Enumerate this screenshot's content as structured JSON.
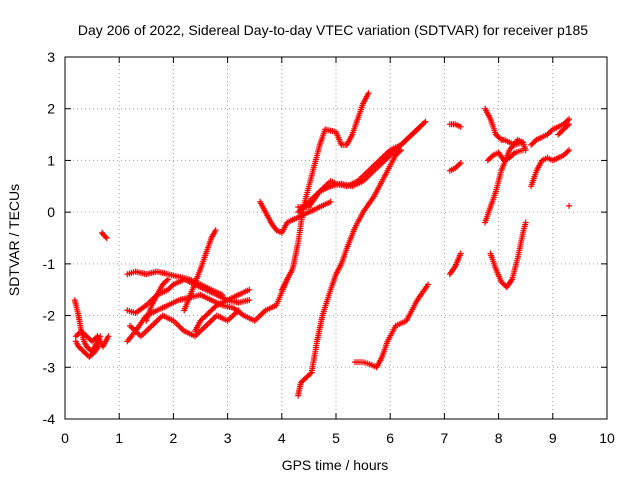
{
  "chart_data": {
    "type": "scatter",
    "title": "Day 206 of 2022, Sidereal Day-to-day VTEC variation (SDTVAR) for receiver p185",
    "xlabel": "GPS time / hours",
    "ylabel": "SDTVAR / TECUs",
    "xlim": [
      0,
      10
    ],
    "ylim": [
      -4,
      3
    ],
    "x_ticks": [
      "0",
      "1",
      "2",
      "3",
      "4",
      "5",
      "6",
      "7",
      "8",
      "9",
      "10"
    ],
    "y_ticks": [
      "3",
      "2",
      "1",
      "0",
      "-1",
      "-2",
      "-3",
      "-4"
    ],
    "grid": true,
    "marker": "+",
    "color": "#ff0000",
    "series": [
      {
        "x": [
          0.18,
          0.25,
          0.3,
          0.35,
          0.4,
          0.5,
          0.55,
          0.6,
          0.65
        ],
        "y": [
          -1.7,
          -2.0,
          -2.3,
          -2.5,
          -2.6,
          -2.7,
          -2.6,
          -2.5,
          -2.4
        ]
      },
      {
        "x": [
          0.2,
          0.3,
          0.4,
          0.5,
          0.6,
          0.65,
          0.7,
          0.75,
          0.8
        ],
        "y": [
          -2.4,
          -2.3,
          -2.4,
          -2.5,
          -2.4,
          -2.5,
          -2.6,
          -2.5,
          -2.4
        ]
      },
      {
        "x": [
          0.2,
          0.25,
          0.35,
          0.45,
          0.55,
          0.62
        ],
        "y": [
          -2.5,
          -2.6,
          -2.7,
          -2.8,
          -2.7,
          -2.6
        ]
      },
      {
        "x": [
          0.68,
          0.72,
          0.77
        ],
        "y": [
          -0.4,
          -0.45,
          -0.5
        ]
      },
      {
        "x": [
          1.15,
          1.3,
          1.5,
          1.7,
          1.9,
          2.1,
          2.3,
          2.5,
          2.7,
          2.9,
          3.1,
          3.3,
          3.5,
          3.7,
          3.9,
          4.1
        ],
        "y": [
          -2.5,
          -2.3,
          -2.0,
          -1.9,
          -1.8,
          -1.7,
          -1.65,
          -1.6,
          -1.7,
          -1.8,
          -1.85,
          -2.0,
          -2.1,
          -1.9,
          -1.8,
          -1.3
        ]
      },
      {
        "x": [
          1.15,
          1.3,
          1.5,
          1.7,
          1.9,
          2.0,
          2.2,
          2.4,
          2.6,
          2.8,
          3.0,
          3.2,
          3.4
        ],
        "y": [
          -1.9,
          -1.95,
          -1.8,
          -1.6,
          -1.5,
          -1.4,
          -1.3,
          -1.4,
          -1.5,
          -1.6,
          -1.7,
          -1.6,
          -1.5
        ]
      },
      {
        "x": [
          1.15,
          1.3,
          1.5,
          1.7,
          1.9,
          2.1,
          2.3,
          2.5,
          2.7,
          2.9
        ],
        "y": [
          -1.2,
          -1.15,
          -1.2,
          -1.15,
          -1.2,
          -1.25,
          -1.3,
          -1.4,
          -1.5,
          -1.6
        ]
      },
      {
        "x": [
          1.2,
          1.4,
          1.6,
          1.8,
          2.0,
          2.2,
          2.4,
          2.6,
          2.8,
          3.0,
          3.2
        ],
        "y": [
          -2.2,
          -2.4,
          -2.2,
          -2.0,
          -2.1,
          -2.3,
          -2.4,
          -2.2,
          -2.0,
          -2.1,
          -1.9
        ]
      },
      {
        "x": [
          1.5,
          1.6,
          1.7,
          1.8,
          1.9
        ],
        "y": [
          -2.1,
          -1.8,
          -1.6,
          -1.4,
          -1.3
        ]
      },
      {
        "x": [
          2.2,
          2.35,
          2.5,
          2.6,
          2.7,
          2.78
        ],
        "y": [
          -1.9,
          -1.5,
          -1.1,
          -0.8,
          -0.5,
          -0.35
        ]
      },
      {
        "x": [
          2.4,
          2.5,
          2.6,
          2.7,
          2.8,
          3.0,
          3.2,
          3.4
        ],
        "y": [
          -2.3,
          -2.1,
          -2.0,
          -1.9,
          -1.8,
          -1.7,
          -1.75,
          -1.7
        ]
      },
      {
        "x": [
          3.6,
          3.7,
          3.8,
          3.9,
          4.0,
          4.1,
          4.3,
          4.5,
          4.7,
          4.9
        ],
        "y": [
          0.2,
          0.0,
          -0.2,
          -0.35,
          -0.4,
          -0.2,
          -0.1,
          0.0,
          0.1,
          0.2
        ]
      },
      {
        "x": [
          4.0,
          4.1,
          4.2,
          4.3,
          4.4,
          4.5,
          4.6,
          4.7,
          4.8,
          5.0,
          5.1,
          5.2,
          5.3,
          5.4,
          5.5,
          5.6
        ],
        "y": [
          -1.5,
          -1.3,
          -1.1,
          -0.6,
          0.1,
          0.5,
          0.9,
          1.3,
          1.6,
          1.55,
          1.3,
          1.3,
          1.5,
          1.8,
          2.1,
          2.3
        ]
      },
      {
        "x": [
          4.3,
          4.5,
          4.7,
          4.9,
          5.1,
          5.3,
          5.5,
          5.7,
          5.9,
          6.1,
          6.3,
          6.5,
          6.65
        ],
        "y": [
          0.0,
          0.2,
          0.4,
          0.5,
          0.55,
          0.5,
          0.6,
          0.8,
          1.0,
          1.2,
          1.4,
          1.6,
          1.75
        ]
      },
      {
        "x": [
          4.3,
          4.5,
          4.7,
          4.9,
          5.0,
          5.2,
          5.4,
          5.6,
          5.8,
          6.0,
          6.2,
          6.4,
          6.6
        ],
        "y": [
          0.1,
          0.1,
          0.4,
          0.6,
          0.55,
          0.5,
          0.6,
          0.8,
          1.0,
          1.2,
          1.3,
          1.5,
          1.7
        ]
      },
      {
        "x": [
          4.3,
          4.35,
          4.45,
          4.55,
          4.65,
          4.75,
          4.9,
          5.0,
          5.1,
          5.2,
          5.35,
          5.5,
          5.7,
          5.9,
          6.1,
          6.2
        ],
        "y": [
          -3.55,
          -3.3,
          -3.2,
          -3.1,
          -2.5,
          -2.0,
          -1.5,
          -1.2,
          -1.0,
          -0.7,
          -0.3,
          0.0,
          0.3,
          0.7,
          1.1,
          1.2
        ]
      },
      {
        "x": [
          5.35,
          5.5,
          5.65,
          5.75,
          5.85,
          5.95,
          6.1,
          6.3,
          6.5,
          6.7
        ],
        "y": [
          -2.9,
          -2.9,
          -2.95,
          -3.0,
          -2.8,
          -2.5,
          -2.2,
          -2.1,
          -1.7,
          -1.4
        ]
      },
      {
        "x": [
          7.1,
          7.2,
          7.3
        ],
        "y": [
          1.7,
          1.7,
          1.65
        ]
      },
      {
        "x": [
          7.1,
          7.2,
          7.3
        ],
        "y": [
          0.8,
          0.85,
          0.95
        ]
      },
      {
        "x": [
          7.1,
          7.2,
          7.3
        ],
        "y": [
          -1.2,
          -1.05,
          -0.8
        ]
      },
      {
        "x": [
          7.75,
          7.85,
          7.95,
          8.05,
          8.1,
          8.2,
          8.3,
          8.45,
          8.5
        ],
        "y": [
          2.0,
          1.8,
          1.5,
          1.4,
          1.4,
          1.35,
          1.3,
          1.35,
          1.2
        ]
      },
      {
        "x": [
          7.75,
          7.85,
          7.95,
          8.05,
          8.2,
          8.35,
          8.45
        ],
        "y": [
          -0.2,
          0.1,
          0.4,
          0.8,
          1.2,
          1.4,
          1.35
        ]
      },
      {
        "x": [
          7.8,
          7.9,
          8.0,
          8.1,
          8.2,
          8.3,
          8.45
        ],
        "y": [
          1.0,
          1.1,
          1.15,
          1.0,
          1.05,
          1.15,
          1.2
        ]
      },
      {
        "x": [
          7.85,
          7.95,
          8.05,
          8.15,
          8.25,
          8.35,
          8.45,
          8.5
        ],
        "y": [
          -0.8,
          -1.1,
          -1.35,
          -1.45,
          -1.3,
          -0.9,
          -0.4,
          -0.2
        ]
      },
      {
        "x": [
          8.6,
          8.7,
          8.8,
          8.9,
          9.0,
          9.1,
          9.2,
          9.3
        ],
        "y": [
          0.5,
          0.8,
          1.0,
          1.05,
          1.0,
          1.05,
          1.1,
          1.2
        ]
      },
      {
        "x": [
          8.6,
          8.7,
          8.8,
          8.9,
          9.0,
          9.1,
          9.2,
          9.3
        ],
        "y": [
          1.3,
          1.4,
          1.45,
          1.5,
          1.6,
          1.65,
          1.7,
          1.8
        ]
      },
      {
        "x": [
          9.1,
          9.2,
          9.3
        ],
        "y": [
          1.5,
          1.6,
          1.7
        ]
      },
      {
        "x": [
          9.3
        ],
        "y": [
          0.12
        ]
      }
    ]
  }
}
